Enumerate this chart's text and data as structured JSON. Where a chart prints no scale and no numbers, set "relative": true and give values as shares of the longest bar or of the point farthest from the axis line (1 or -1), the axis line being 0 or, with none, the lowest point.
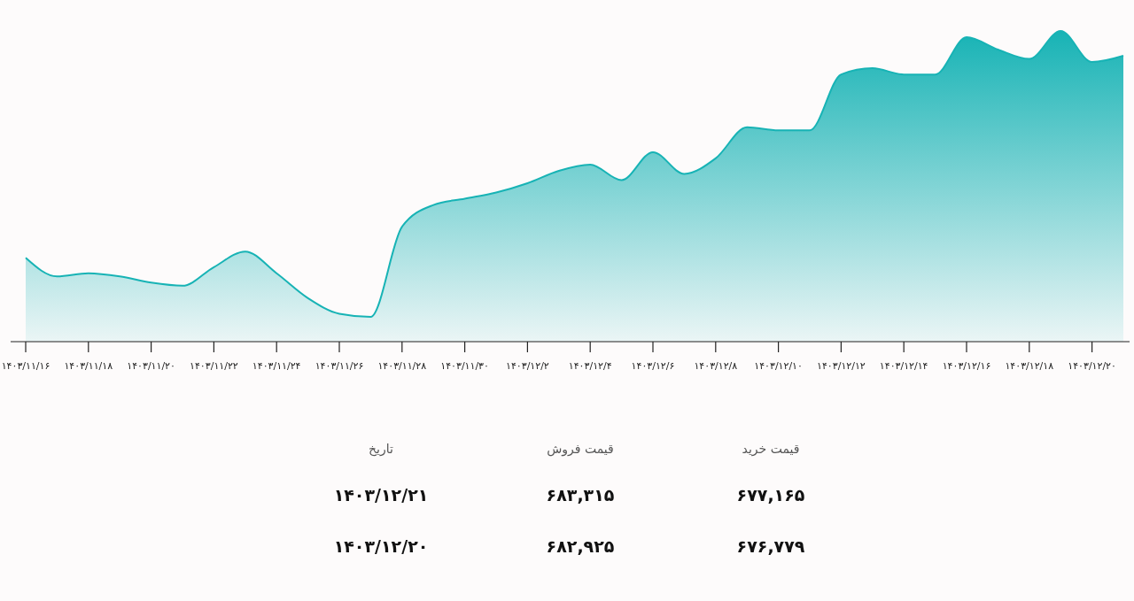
{
  "chart_data": [
    {
      "type": "area",
      "relative": true,
      "categories": [
        "۱۴۰۳/۱۱/۱۶",
        null,
        "۱۴۰۳/۱۱/۱۸",
        null,
        "۱۴۰۳/۱۱/۲۰",
        null,
        "۱۴۰۳/۱۱/۲۲",
        null,
        "۱۴۰۳/۱۱/۲۴",
        null,
        "۱۴۰۳/۱۱/۲۶",
        null,
        "۱۴۰۳/۱۱/۲۸",
        null,
        "۱۴۰۳/۱۱/۳۰",
        null,
        "۱۴۰۳/۱۲/۲",
        null,
        "۱۴۰۳/۱۲/۴",
        null,
        "۱۴۰۳/۱۲/۶",
        null,
        "۱۴۰۳/۱۲/۸",
        null,
        "۱۴۰۳/۱۲/۱۰",
        null,
        "۱۴۰۳/۱۲/۱۲",
        null,
        "۱۴۰۳/۱۲/۱۴",
        null,
        "۱۴۰۳/۱۲/۱۶",
        null,
        "۱۴۰۳/۱۲/۱۸",
        null,
        "۱۴۰۳/۱۲/۲۰",
        null
      ],
      "series": [
        {
          "color": "#17b3b5",
          "values": [
            0.27,
            0.21,
            0.22,
            0.21,
            0.19,
            0.18,
            0.24,
            0.29,
            0.22,
            0.14,
            0.09,
            0.08,
            0.37,
            0.44,
            0.46,
            0.48,
            0.51,
            0.55,
            0.57,
            0.52,
            0.61,
            0.54,
            0.59,
            0.69,
            0.68,
            0.68,
            0.86,
            0.88,
            0.86,
            0.86,
            0.98,
            0.94,
            0.91,
            1.0,
            0.9,
            0.92
          ]
        }
      ],
      "legend": false
    },
    {
      "type": "other",
      "annotations": [
        "قیمت خرید",
        "قیمت فروش",
        "تاریخ",
        "۶۷۷,۱۶۵",
        "۶۸۳,۳۱۵",
        "۱۴۰۳/۱۲/۲۱",
        "۶۷۶,۷۷۹",
        "۶۸۲,۹۲۵",
        "۱۴۰۳/۱۲/۲۰"
      ]
    }
  ]
}
